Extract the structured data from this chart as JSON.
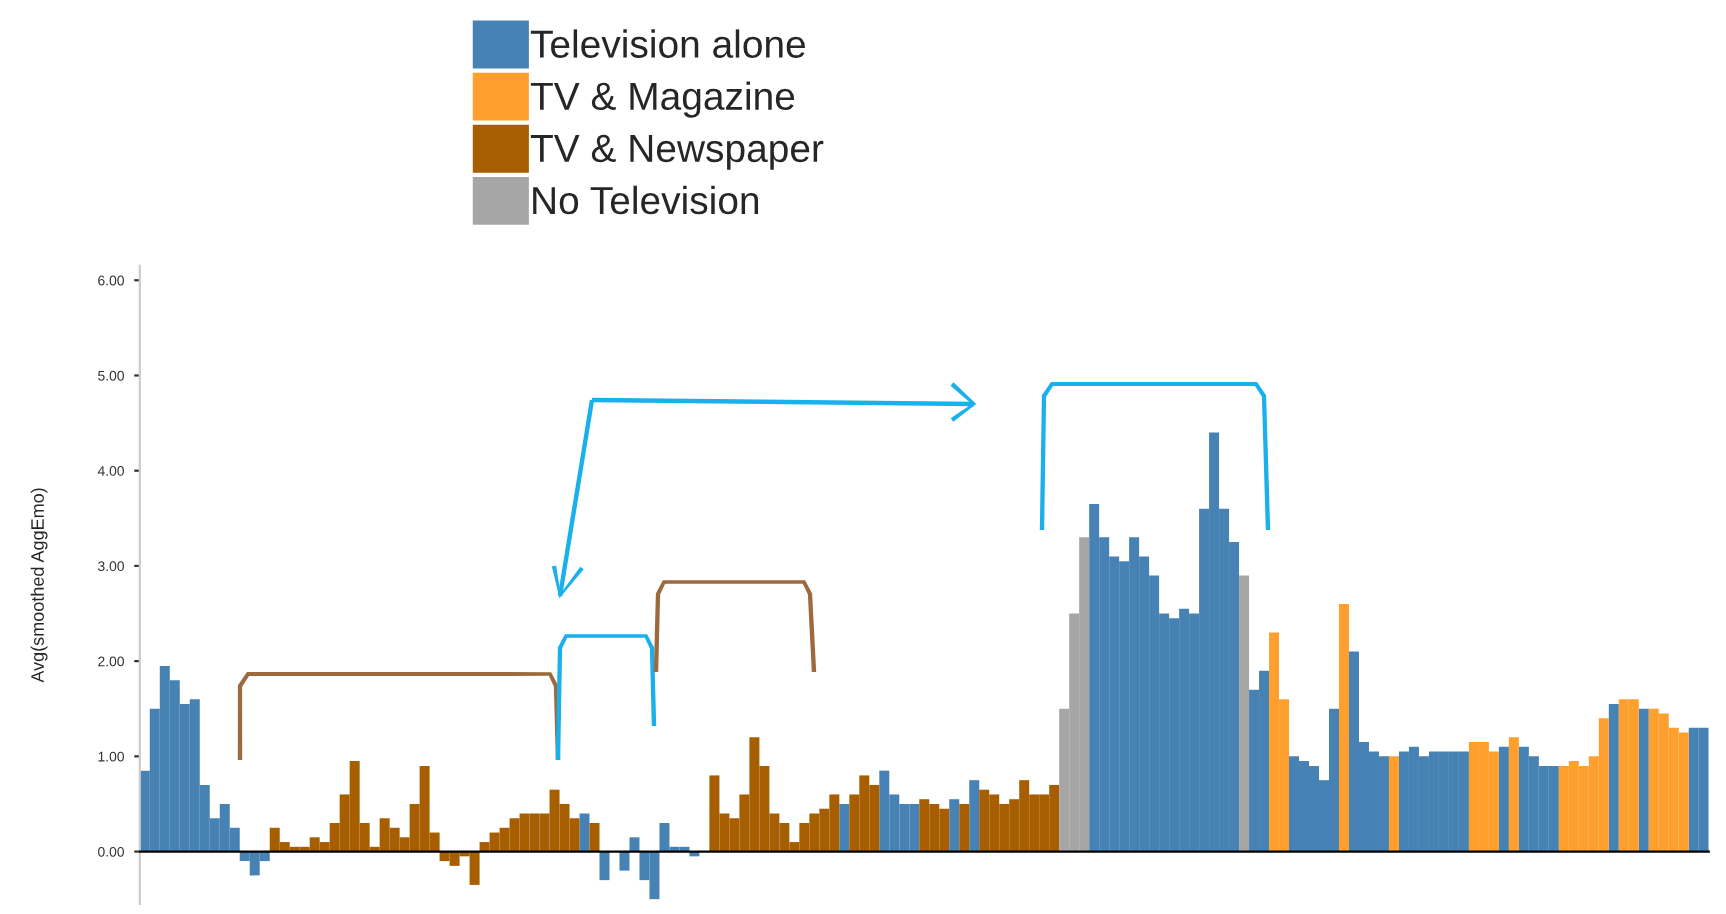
{
  "chart_data": {
    "type": "bar",
    "ylabel": "Avg(smoothed AggEmo)",
    "ylim": [
      -0.55,
      6.15
    ],
    "yticks": [
      {
        "value": 0,
        "label": "0.00"
      },
      {
        "value": 1,
        "label": "1.00"
      },
      {
        "value": 2,
        "label": "2.00"
      },
      {
        "value": 3,
        "label": "3.00"
      },
      {
        "value": 4,
        "label": "4.00"
      },
      {
        "value": 5,
        "label": "5.00"
      },
      {
        "value": 6,
        "label": "6.00"
      }
    ],
    "legend": "top",
    "tick_labels": "y",
    "categories": [
      null,
      null,
      null,
      null,
      null,
      null,
      null,
      null,
      null,
      null,
      null,
      null,
      null,
      null,
      null,
      null,
      null,
      null,
      null,
      null,
      null,
      null,
      null,
      null,
      null,
      null,
      null,
      null,
      null,
      null,
      null,
      null,
      null,
      null,
      null,
      null,
      null,
      null,
      null,
      null,
      null,
      null,
      null,
      null,
      null,
      null,
      null,
      null,
      null,
      null,
      null,
      null,
      null,
      null,
      null,
      null,
      null,
      null,
      null,
      null,
      null,
      null,
      null,
      null,
      null,
      null,
      null,
      null,
      null,
      null,
      null,
      null,
      null,
      null,
      null,
      null,
      null,
      null,
      null,
      null,
      null,
      null,
      null,
      null,
      null,
      null,
      null,
      null,
      null,
      null,
      null,
      null,
      null,
      null,
      null,
      null,
      null,
      null,
      null,
      null,
      null,
      null,
      null,
      null,
      null,
      null,
      null,
      null,
      null,
      null,
      null,
      null,
      null,
      null,
      null,
      null,
      null,
      null,
      null,
      null,
      null,
      null,
      null,
      null,
      null,
      null,
      null,
      null,
      null,
      null,
      null,
      null,
      null,
      null,
      null,
      null,
      null,
      null,
      null,
      null,
      null,
      null,
      null,
      null,
      null,
      null,
      null,
      null,
      null,
      null,
      null,
      null,
      null,
      null,
      null,
      null,
      null
    ],
    "series": [
      {
        "name": "Television alone",
        "color": "#4682b4",
        "values": [
          0.85,
          1.5,
          1.95,
          1.8,
          1.55,
          1.6,
          0.7,
          0.35,
          0.5,
          0.25,
          -0.1,
          -0.25,
          -0.1,
          null,
          null,
          null,
          null,
          null,
          null,
          null,
          null,
          null,
          null,
          null,
          null,
          null,
          null,
          null,
          null,
          null,
          null,
          null,
          null,
          null,
          null,
          null,
          null,
          null,
          null,
          null,
          null,
          null,
          null,
          null,
          0.4,
          null,
          -0.3,
          null,
          -0.2,
          0.15,
          -0.3,
          -0.5,
          0.3,
          0.05,
          0.05,
          -0.05,
          null,
          null,
          null,
          null,
          null,
          null,
          null,
          null,
          null,
          null,
          null,
          null,
          null,
          null,
          0.5,
          null,
          null,
          null,
          0.85,
          0.6,
          0.5,
          0.5,
          null,
          null,
          null,
          0.55,
          null,
          0.75,
          null,
          null,
          null,
          null,
          null,
          null,
          null,
          null,
          null,
          null,
          null,
          3.65,
          3.3,
          3.1,
          3.05,
          3.3,
          3.1,
          2.9,
          2.5,
          2.45,
          2.55,
          2.5,
          3.6,
          4.4,
          3.6,
          3.25,
          null,
          1.7,
          1.9,
          null,
          null,
          1.0,
          0.95,
          0.9,
          0.75,
          1.5,
          null,
          2.1,
          1.15,
          1.05,
          1.0,
          null,
          1.05,
          1.1,
          1.0,
          1.05,
          1.05,
          1.05,
          1.05,
          null,
          null,
          null,
          1.1,
          null,
          1.1,
          1.0,
          0.9,
          0.9,
          null,
          null,
          null,
          null,
          null,
          1.55,
          null,
          null,
          1.5,
          null,
          null,
          null,
          null,
          1.3,
          1.3
        ]
      },
      {
        "name": "TV & Magazine",
        "color": "#ffa02e",
        "values": [
          null,
          null,
          null,
          null,
          null,
          null,
          null,
          null,
          null,
          null,
          null,
          null,
          null,
          null,
          null,
          null,
          null,
          null,
          null,
          null,
          null,
          null,
          null,
          null,
          null,
          null,
          null,
          null,
          null,
          null,
          null,
          null,
          null,
          null,
          null,
          null,
          null,
          null,
          null,
          null,
          null,
          null,
          null,
          null,
          null,
          null,
          null,
          null,
          null,
          null,
          null,
          null,
          null,
          null,
          null,
          null,
          null,
          null,
          null,
          null,
          null,
          null,
          null,
          null,
          null,
          null,
          null,
          null,
          null,
          null,
          null,
          null,
          null,
          null,
          null,
          null,
          null,
          null,
          null,
          null,
          null,
          null,
          null,
          null,
          null,
          null,
          null,
          null,
          null,
          null,
          null,
          null,
          null,
          null,
          null,
          null,
          null,
          null,
          null,
          null,
          null,
          null,
          null,
          null,
          null,
          null,
          null,
          null,
          null,
          null,
          null,
          null,
          null,
          2.3,
          1.6,
          null,
          null,
          null,
          null,
          null,
          2.6,
          null,
          null,
          null,
          null,
          1.0,
          null,
          null,
          null,
          null,
          null,
          null,
          null,
          1.15,
          1.15,
          1.05,
          null,
          1.2,
          null,
          null,
          null,
          null,
          0.9,
          0.95,
          0.9,
          1.0,
          1.4,
          null,
          1.6,
          1.6,
          null,
          1.5,
          1.45,
          1.3,
          1.25,
          null,
          null
        ]
      },
      {
        "name": "TV & Newspaper",
        "color": "#a65e00",
        "values": [
          null,
          null,
          null,
          null,
          null,
          null,
          null,
          null,
          null,
          null,
          null,
          null,
          null,
          0.25,
          0.1,
          0.05,
          0.05,
          0.15,
          0.1,
          0.3,
          0.6,
          0.95,
          0.3,
          0.05,
          0.35,
          0.25,
          0.15,
          0.5,
          0.9,
          0.2,
          -0.1,
          -0.15,
          -0.05,
          -0.35,
          0.1,
          0.2,
          0.25,
          0.35,
          0.4,
          0.4,
          0.4,
          0.65,
          0.5,
          0.35,
          null,
          0.3,
          null,
          null,
          null,
          null,
          null,
          null,
          null,
          null,
          null,
          null,
          null,
          0.8,
          0.4,
          0.35,
          0.6,
          1.2,
          0.9,
          0.4,
          0.3,
          0.1,
          0.3,
          0.4,
          0.45,
          0.6,
          null,
          0.6,
          0.8,
          0.7,
          null,
          null,
          null,
          null,
          0.55,
          0.5,
          0.45,
          null,
          0.5,
          null,
          0.65,
          0.6,
          0.5,
          0.55,
          0.75,
          0.6,
          0.6,
          0.7,
          null,
          null,
          null,
          null,
          null,
          null,
          null,
          null,
          null,
          null,
          null,
          null,
          null,
          null,
          null,
          null,
          null,
          null,
          null,
          null,
          null,
          null,
          null,
          null,
          null,
          null,
          null,
          null,
          null,
          null,
          null,
          null,
          null,
          null,
          null,
          null,
          null,
          null,
          null,
          null,
          null,
          null,
          null,
          null,
          null,
          null,
          null,
          null,
          null,
          null,
          null,
          null,
          null,
          null,
          null,
          null,
          null,
          null,
          null,
          null,
          null,
          null,
          null,
          null,
          null
        ]
      },
      {
        "name": "No Television",
        "color": "#a6a6a6",
        "values": [
          null,
          null,
          null,
          null,
          null,
          null,
          null,
          null,
          null,
          null,
          null,
          null,
          null,
          null,
          null,
          null,
          null,
          null,
          null,
          null,
          null,
          null,
          null,
          null,
          null,
          null,
          null,
          null,
          null,
          null,
          null,
          null,
          null,
          null,
          null,
          null,
          null,
          null,
          null,
          null,
          null,
          null,
          null,
          null,
          null,
          null,
          null,
          null,
          null,
          null,
          null,
          null,
          null,
          null,
          null,
          null,
          null,
          null,
          null,
          null,
          null,
          null,
          null,
          null,
          null,
          null,
          null,
          null,
          null,
          null,
          null,
          null,
          null,
          null,
          null,
          null,
          null,
          null,
          null,
          null,
          null,
          null,
          null,
          null,
          null,
          null,
          null,
          null,
          null,
          null,
          null,
          null,
          1.5,
          2.5,
          3.3,
          null,
          null,
          null,
          null,
          null,
          null,
          null,
          null,
          null,
          null,
          null,
          null,
          null,
          null,
          null,
          2.9,
          null,
          null,
          null,
          null,
          null,
          null,
          null,
          null,
          null,
          null,
          null,
          null,
          null,
          null,
          null,
          null,
          null,
          null,
          null,
          null,
          null,
          null,
          null,
          null,
          null,
          null,
          null,
          null,
          null,
          null,
          null,
          null,
          null,
          null,
          null,
          null,
          null,
          null,
          null,
          null,
          null,
          null,
          null,
          null,
          null,
          null
        ]
      }
    ]
  }
}
